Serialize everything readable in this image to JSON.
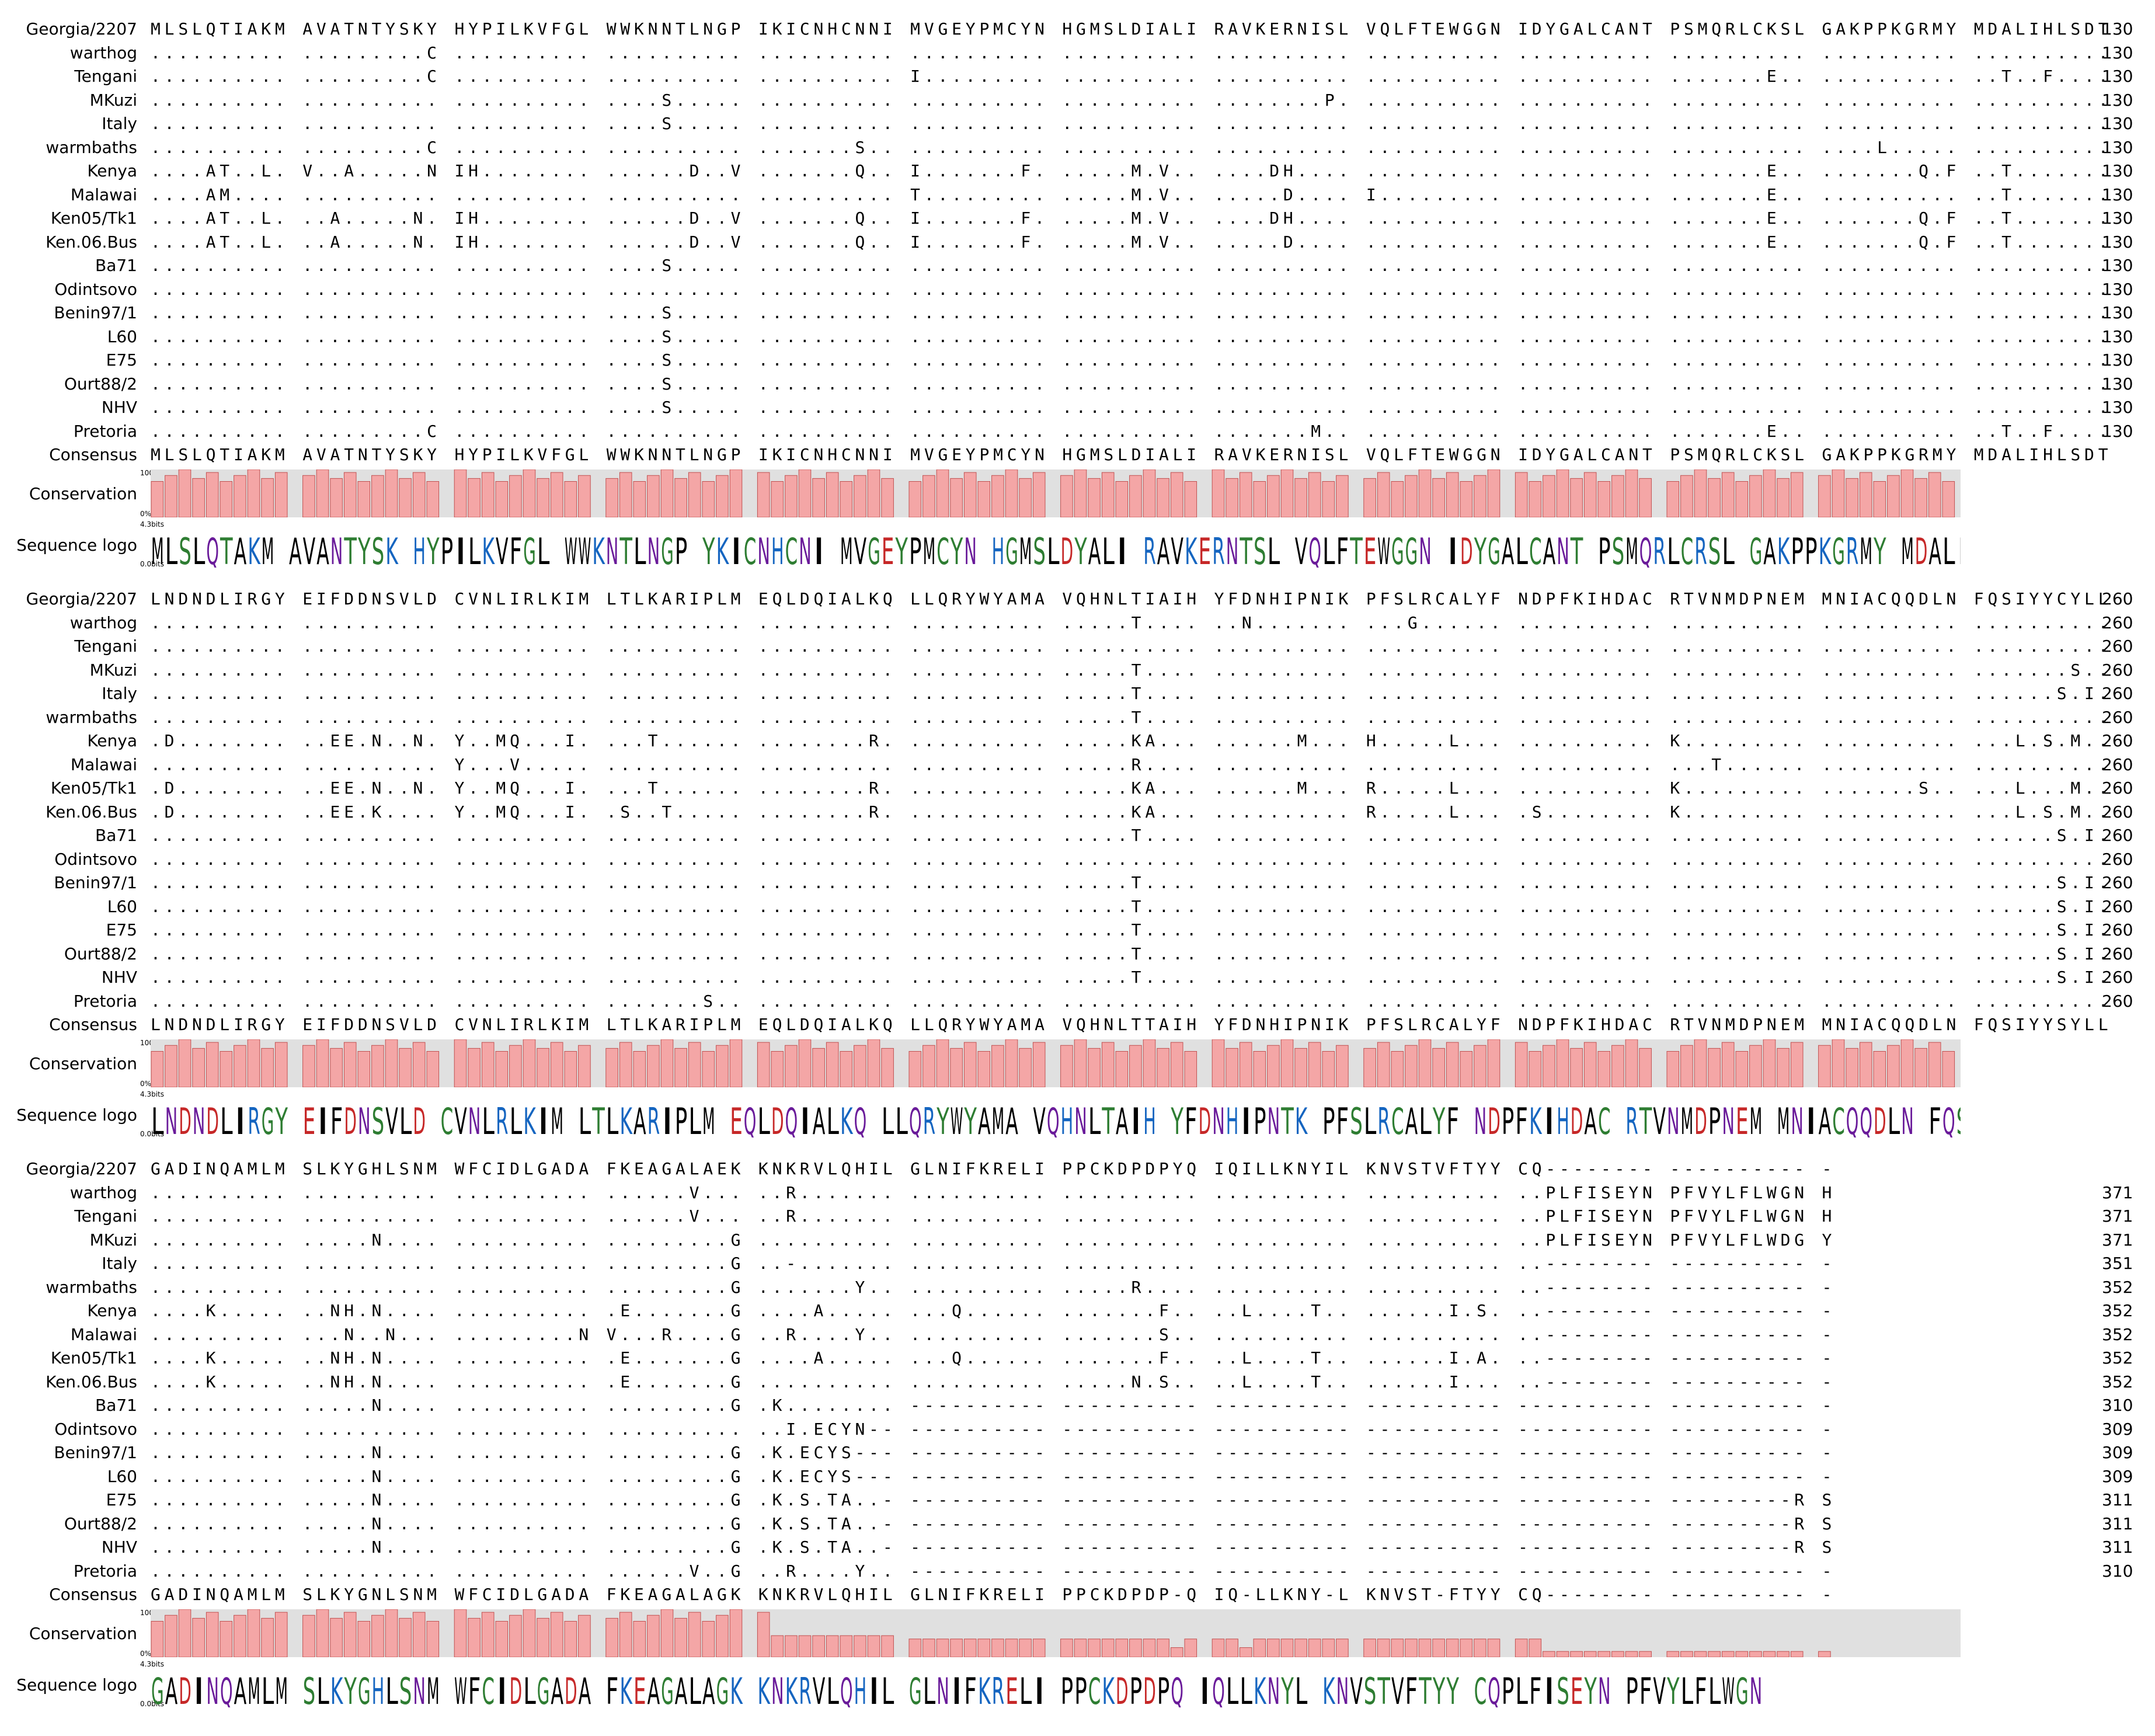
{
  "labels": {
    "consensus": "Consensus",
    "conservation": "Conservation",
    "logo": "Sequence logo",
    "pct_top": "100%",
    "pct_bottom": "0%",
    "bits_top": "4.3bits",
    "bits_bottom": "0.0bits"
  },
  "colors": {
    "bar_fill": "#f4a6a6",
    "bar_stroke": "#c05050",
    "bar_bg": "#e0e0e0",
    "logo_palette": [
      "#2e7d32",
      "#1565c0",
      "#c62828",
      "#6a1b9a",
      "#ef6c00",
      "#000000"
    ]
  },
  "blocks": [
    {
      "sequences": [
        {
          "name": "Georgia/2207",
          "seq": "MLSLQTIAKM AVATNTYSKY HYPILKVFGL WWKNNTLNGP IKICNHCNNI MVGEYPMCYN HGMSLDIALI RAVKERNISL VQLFTEWGGN IDYGALCANT PSMQRLCKSL GAKPPKGRMY MDALIHLSDT",
          "end": "130"
        },
        {
          "name": "warthog",
          "seq": ".......... .........C .......... .......... .......... .......... .......... .......... .......... .......... .......... .......... ..........",
          "end": "130"
        },
        {
          "name": "Tengani",
          "seq": ".......... .........C .......... .......... .......... I......... .......... .......... .......... .......... .......E.. .......... ..T..F....",
          "end": "130"
        },
        {
          "name": "MKuzi",
          "seq": ".......... .......... .......... ....S..... .......... .......... .......... ........P. .......... .......... .......... .......... ..........",
          "end": "130"
        },
        {
          "name": "Italy",
          "seq": ".......... .......... .......... ....S..... .......... .......... .......... .......... .......... .......... .......... .......... ..........",
          "end": "130"
        },
        {
          "name": "warmbaths",
          "seq": ".......... .........C .......... .......... .......S.. .......... .......... .......... .......... .......... .......... ....L..... ..........",
          "end": "130"
        },
        {
          "name": "Kenya",
          "seq": "....AT..L. V..A.....N IH........ ......D..V .......Q.. I.......F. .....M.V.. ....DH.... .......... .......... .......E.. .......Q.F ..T.......",
          "end": "130"
        },
        {
          "name": "Malawai",
          "seq": "....AM.... .......... .......... .......... .......... T......... .....M.V.. .....D.... I......... .......... .......E.. .......... ..T.......",
          "end": "130"
        },
        {
          "name": "Ken05/Tk1",
          "seq": "....AT..L. ..A.....N. IH........ ......D..V .......Q.. I.......F. .....M.V.. ....DH.... .......... .......... .......E.. .......Q.F ..T.......",
          "end": "130"
        },
        {
          "name": "Ken.06.Bus",
          "seq": "....AT..L. ..A.....N. IH........ ......D..V .......Q.. I.......F. .....M.V.. .....D.... .......... .......... .......E.. .......Q.F ..T.......",
          "end": "130"
        },
        {
          "name": "Ba71",
          "seq": ".......... .......... .......... ....S..... .......... .......... .......... .......... .......... .......... .......... .......... ..........",
          "end": "130"
        },
        {
          "name": "Odintsovo",
          "seq": ".......... .......... .......... .......... .......... .......... .......... .......... .......... .......... .......... .......... ..........",
          "end": "130"
        },
        {
          "name": "Benin97/1",
          "seq": ".......... .......... .......... ....S..... .......... .......... .......... .......... .......... .......... .......... .......... ..........",
          "end": "130"
        },
        {
          "name": "L60",
          "seq": ".......... .......... .......... ....S..... .......... .......... .......... .......... .......... .......... .......... .......... ..........",
          "end": "130"
        },
        {
          "name": "E75",
          "seq": ".......... .......... .......... ....S..... .......... .......... .......... .......... .......... .......... .......... .......... ..........",
          "end": "130"
        },
        {
          "name": "Ourt88/2",
          "seq": ".......... .......... .......... ....S..... .......... .......... .......... .......... .......... .......... .......... .......... ..........",
          "end": "130"
        },
        {
          "name": "NHV",
          "seq": ".......... .......... .......... ....S..... .......... .......... .......... .......... .......... .......... .......... .......... ..........",
          "end": "130"
        },
        {
          "name": "Pretoria",
          "seq": ".......... .........C .......... .......... .......... .......... .......... .......M.. .......... .......... .......E.. .......... ..T..F....",
          "end": "130"
        }
      ],
      "consensus": "MLSLQTIAKM AVATNTYSKY HYPILKVFGL WWKNNTLNGP IKICNHCNNI MVGEYPMCYN HGMSLDIALI RAVKERNISL VQLFTEWGGN IDYGALCANT PSMQRLCKSL GAKPPKGRMY MDALIHLSDT",
      "conservation": "1111111111 1111111111 1111111111 1111111111 1111111111 1111111111 1111111111 1111111111 1111111111 1111111111 1111111111 1111111111 1111111111",
      "logo": "MLSLQTAKM AVANTYSK HYPILKVFGL WWKNTLNGP YKICNHCNI MVGEYPMCYN HGMSLDYALI RAVKERNTSL VQLFTEWGGN IDYGALCANT PSMQRLCRSL GAKPPKGRMY MDALIHCSDT"
    },
    {
      "sequences": [
        {
          "name": "Georgia/2207",
          "seq": "LNDNDLIRGY EIFDDNSVLD CVNLIRLKIM LTLKARIPLM EQLDQIALKQ LLQRYWYAMA VQHNLTIAIH YFDNHIPNIK PFSLRCALYF NDPFKIHDAC RTVNMDPNEM MNIACQQDLN FQSIYYCYLL",
          "end": "260"
        },
        {
          "name": "warthog",
          "seq": ".......... .......... .......... .......... .......... .......... .....T.... ..N....... ...G...... .......... .......... .......... ..........",
          "end": "260"
        },
        {
          "name": "Tengani",
          "seq": ".......... .......... .......... .......... .......... .......... .......... .......... .......... .......... .......... .......... ..........",
          "end": "260"
        },
        {
          "name": "MKuzi",
          "seq": ".......... .......... .......... .......... .......... .......... .....T.... .......... .......... .......... .......... .......... .......S..",
          "end": "260"
        },
        {
          "name": "Italy",
          "seq": ".......... .......... .......... .......... .......... .......... .....T.... .......... .......... .......... .......... .......... ......S.I.",
          "end": "260"
        },
        {
          "name": "warmbaths",
          "seq": ".......... .......... .......... .......... .......... .......... .....T.... .......... .......... .......... .......... .......... ..........",
          "end": "260"
        },
        {
          "name": "Kenya",
          "seq": ".D........ ..EE.N..N. Y..MQ...I. ...T...... ........R. .......... .....KA... ......M... H.....L... .......... K......... .......... ...L.S.M..",
          "end": "260"
        },
        {
          "name": "Malawai",
          "seq": ".......... .......... Y...V..... .......... .......... .......... .....R.... .......... .......... .......... ...T...... .......... ..........",
          "end": "260"
        },
        {
          "name": "Ken05/Tk1",
          "seq": ".D........ ..EE.N..N. Y..MQ...I. ...T...... ........R. .......... .....KA... ......M... R.....L... .......... K......... .......S.. ...L...M..",
          "end": "260"
        },
        {
          "name": "Ken.06.Bus",
          "seq": ".D........ ..EE.K.... Y..MQ...I. .S..T..... ........R. .......... .....KA... .......... R.....L... .S........ K......... .......... ...L.S.M..",
          "end": "260"
        },
        {
          "name": "Ba71",
          "seq": ".......... .......... .......... .......... .......... .......... .....T.... .......... .......... .......... .......... .......... ......S.I.",
          "end": "260"
        },
        {
          "name": "Odintsovo",
          "seq": ".......... .......... .......... .......... .......... .......... .......... .......... .......... .......... .......... .......... ..........",
          "end": "260"
        },
        {
          "name": "Benin97/1",
          "seq": ".......... .......... .......... .......... .......... .......... .....T.... .......... .......... .......... .......... .......... ......S.I.",
          "end": "260"
        },
        {
          "name": "L60",
          "seq": ".......... .......... .......... .......... .......... .......... .....T.... .......... .......... .......... .......... .......... ......S.I.",
          "end": "260"
        },
        {
          "name": "E75",
          "seq": ".......... .......... .......... .......... .......... .......... .....T.... .......... .......... .......... .......... .......... ......S.I.",
          "end": "260"
        },
        {
          "name": "Ourt88/2",
          "seq": ".......... .......... .......... .......... .......... .......... .....T.... .......... .......... .......... .......... .......... ......S.I.",
          "end": "260"
        },
        {
          "name": "NHV",
          "seq": ".......... .......... .......... .......... .......... .......... .....T.... .......... .......... .......... .......... .......... ......S.I.",
          "end": "260"
        },
        {
          "name": "Pretoria",
          "seq": ".......... .......... .......... .......S.. .......... .......... .......... .......... .......... .......... .......... .......... ..........",
          "end": "260"
        }
      ],
      "consensus": "LNDNDLIRGY EIFDDNSVLD CVNLIRLKIM LTLKARIPLM EQLDQIALKQ LLQRYWYAMA VQHNLTTAIH YFDNHIPNIK PFSLRCALYF NDPFKIHDAC RTVNMDPNEM MNIACQQDLN FQSIYYSYLL",
      "conservation": "1111111111 1111111111 1111111111 1111111111 1111111111 1111111111 1111111111 1111111111 1111111111 1111111111 1111111111 1111111111 1111111111",
      "logo": "LNDNDLIRGY EIFDNSVLD CVNLRLKIM LTLKARIPLM EQLDQIALKQ LLQRYWYAMA VQHNLTAIH YFDNHIPNTK PFSLRCALYF NDPFKIHDAC RTVNMDPNEM MNIACQQDLN FQSIYYSYLL"
    },
    {
      "sequences": [
        {
          "name": "Georgia/2207",
          "seq": "GADINQAMLM SLKYGHLSNM WFCIDLGADA FKEAGALAEK KNKRVLQHIL GLNIFKRELI PPCKDPDPYQ IQILLKNYIL KNVSTVFTYY CQ-------- ---------- -",
          "end": ""
        },
        {
          "name": "warthog",
          "seq": ".......... .......... .......... ......V... ..R....... .......... .......... .......... .......... ..PLFISEYN PFVYLFLWGN H",
          "end": "371"
        },
        {
          "name": "Tengani",
          "seq": ".......... .......... .......... ......V... ..R....... .......... .......... .......... .......... ..PLFISEYN PFVYLFLWGN H",
          "end": "371"
        },
        {
          "name": "MKuzi",
          "seq": ".......... .....N.... .......... .........G .......... .......... .......... .......... .......... ..PLFISEYN PFVYLFLWDG Y",
          "end": "371"
        },
        {
          "name": "Italy",
          "seq": ".......... .......... .......... .........G ..-....... .......... .......... .......... .......... ..-------- ---------- -",
          "end": "351"
        },
        {
          "name": "warmbaths",
          "seq": ".......... .......... .......... .........G .......Y.. .......... .....R.... .......... .......... ..-------- ---------- -",
          "end": "352"
        },
        {
          "name": "Kenya",
          "seq": "....K..... ..NH.N.... .......... .E.......G ....A..... ...Q...... .......F.. ..L....T.. ......I.S. ..-------- ---------- -",
          "end": "352"
        },
        {
          "name": "Malawai",
          "seq": ".......... ...N..N... .........N V...R....G ..R....Y.. .......... .......S.. .......... .......... ..-------- ---------- -",
          "end": "352"
        },
        {
          "name": "Ken05/Tk1",
          "seq": "....K..... ..NH.N.... .......... .E.......G ....A..... ...Q...... .......F.. ..L....T.. ......I.A. ..-------- ---------- -",
          "end": "352"
        },
        {
          "name": "Ken.06.Bus",
          "seq": "....K..... ..NH.N.... .......... .E.......G .......... .......... .....N.S.. ..L....T.. ......I... ..-------- ---------- -",
          "end": "352"
        },
        {
          "name": "Ba71",
          "seq": ".......... .....N.... .......... .........G .K........ ---------- ---------- ---------- ---------- ---------- ---------- -",
          "end": "310"
        },
        {
          "name": "Odintsovo",
          "seq": ".......... .......... .......... .......... ..I.ECYN-- ---------- ---------- ---------- ---------- ---------- ---------- -",
          "end": "309"
        },
        {
          "name": "Benin97/1",
          "seq": ".......... .....N.... .......... .........G .K.ECYS--- ---------- ---------- ---------- ---------- ---------- ---------- -",
          "end": "309"
        },
        {
          "name": "L60",
          "seq": ".......... .....N.... .......... .........G .K.ECYS--- ---------- ---------- ---------- ---------- ---------- ---------- -",
          "end": "309"
        },
        {
          "name": "E75",
          "seq": ".......... .....N.... .......... .........G .K.S.TA..- ---------- ---------- ---------- ---------- ---------- ---------R S",
          "end": "311"
        },
        {
          "name": "Ourt88/2",
          "seq": ".......... .....N.... .......... .........G .K.S.TA..- ---------- ---------- ---------- ---------- ---------- ---------R S",
          "end": "311"
        },
        {
          "name": "NHV",
          "seq": ".......... .....N.... .......... .........G .K.S.TA..- ---------- ---------- ---------- ---------- ---------- ---------R S",
          "end": "311"
        },
        {
          "name": "Pretoria",
          "seq": ".......... .......... .......... ......V..G ..R....Y.. ---------- ---------- ---------- ---------- ---------- ---------- -",
          "end": "310"
        }
      ],
      "consensus": "GADINQAMLM SLKYGNLSNM WFCIDLGADA FKEAGALAGK KNKRVLQHIL GLNIFKRELI PPCKDPDP-Q IQ-LLKNY-L KNVST-FTYY CQ-------- ---------- -",
      "conservation": "1111111111 1111111111 1111111111 1111111111 1222222222 3333333333 3333333303 3303333333 3333333333 3344444444 4444444444 4",
      "logo": "GADINQAMLM SLKYGHLSNM WFCIDLGADA FKEAGALAGK KNKRVLQHIL GLNIFKRELI PPCKDPDPQ IQLLKNYL KNVSTVFTYY CQPLFISEYN PFVYLFLWGN"
    }
  ]
}
